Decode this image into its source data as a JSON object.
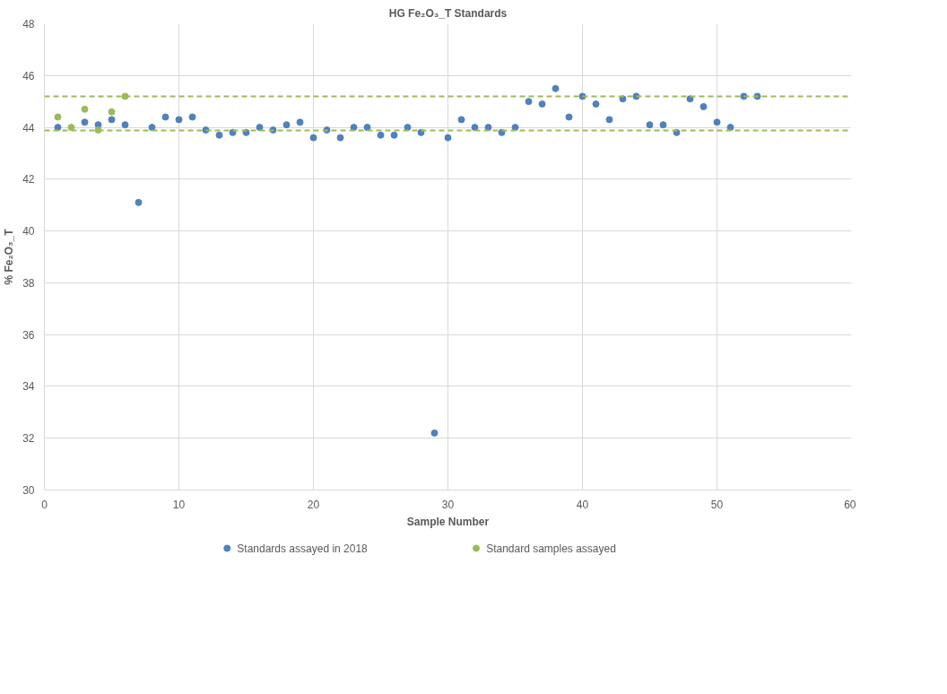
{
  "chart_data": {
    "type": "scatter",
    "title": "HG Fe₂O₃_T Standards",
    "xlabel": "Sample Number",
    "ylabel": "% Fe₂O₃_T",
    "xlim": [
      0,
      60
    ],
    "xticks": [
      0,
      10,
      20,
      30,
      40,
      50,
      60
    ],
    "ylim": [
      30,
      48
    ],
    "yticks": [
      30,
      32,
      34,
      36,
      38,
      40,
      42,
      44,
      46,
      48
    ],
    "grid": true,
    "legend": "bottom",
    "marker": "circle",
    "ref_lines": [
      {
        "axis": "y",
        "value": 45.2,
        "color": "#9bbb59",
        "line_style": "dashed"
      },
      {
        "axis": "y",
        "value": 43.88,
        "color": "#9bbb59",
        "line_style": "dashed"
      }
    ],
    "series": [
      {
        "name": "Standards assayed in 2018",
        "color": "#4f81bd",
        "x": [
          1,
          2,
          3,
          4,
          5,
          6,
          7,
          8,
          9,
          10,
          11,
          12,
          13,
          14,
          15,
          16,
          17,
          18,
          19,
          20,
          21,
          22,
          23,
          24,
          25,
          26,
          27,
          28,
          29,
          30,
          31,
          32,
          33,
          34,
          35,
          36,
          37,
          38,
          39,
          40,
          41,
          42,
          43,
          44,
          45,
          46,
          47,
          48,
          49,
          50,
          51,
          52,
          53
        ],
        "values": [
          44.0,
          null,
          44.2,
          44.1,
          44.3,
          44.1,
          41.1,
          44.0,
          44.4,
          44.3,
          44.4,
          43.9,
          43.7,
          43.8,
          43.8,
          44.0,
          43.9,
          44.1,
          44.2,
          43.6,
          43.9,
          43.6,
          44.0,
          44.0,
          43.7,
          43.7,
          44.0,
          43.8,
          32.2,
          43.6,
          44.3,
          44.0,
          44.0,
          43.8,
          44.0,
          45.0,
          44.9,
          45.5,
          44.4,
          45.2,
          44.9,
          44.3,
          45.1,
          45.2,
          44.1,
          44.1,
          43.8,
          45.1,
          44.8,
          44.2,
          44.0,
          45.2,
          45.2
        ]
      },
      {
        "name": "Standard samples assayed",
        "color": "#9bbb59",
        "x": [
          1,
          2,
          3,
          4,
          5,
          6
        ],
        "values": [
          44.4,
          44.0,
          44.7,
          43.9,
          44.6,
          45.2
        ]
      }
    ]
  }
}
